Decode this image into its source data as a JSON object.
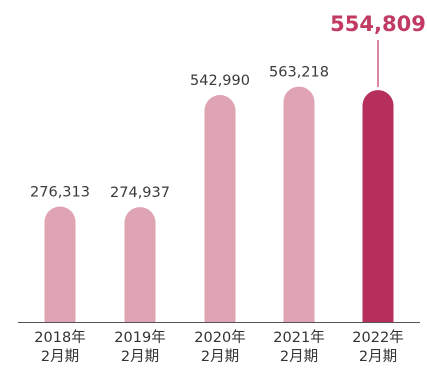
{
  "chart_data": {
    "type": "bar",
    "categories": [
      [
        "2018年",
        "2月期"
      ],
      [
        "2019年",
        "2月期"
      ],
      [
        "2020年",
        "2月期"
      ],
      [
        "2021年",
        "2月期"
      ],
      [
        "2022年",
        "2月期"
      ]
    ],
    "values": [
      276313,
      274937,
      542990,
      563218,
      554809
    ],
    "value_labels": [
      "276,313",
      "274,937",
      "542,990",
      "563,218",
      "554,809"
    ],
    "highlight_index": 4,
    "colors": {
      "bar": "#e0a3b4",
      "highlight_bar": "#b62f5c",
      "highlight_label": "#c03a62",
      "axis": "#555555"
    },
    "title": "",
    "xlabel": "",
    "ylabel": "",
    "ylim": [
      0,
      600000
    ],
    "grid": false,
    "legend": "none"
  }
}
